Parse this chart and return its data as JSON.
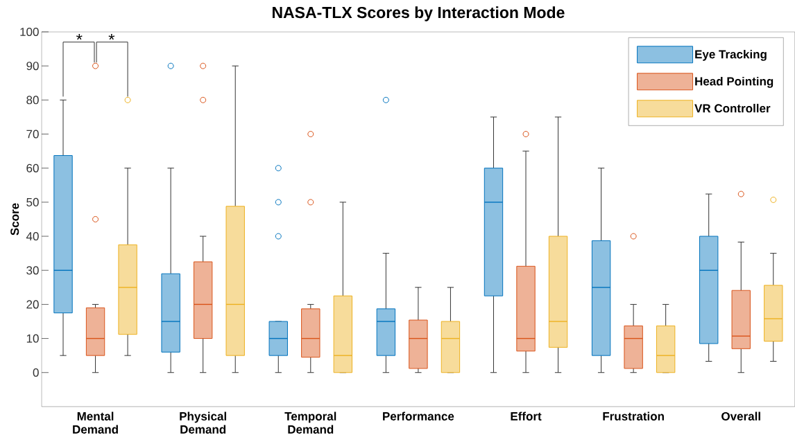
{
  "chart_data": {
    "type": "box",
    "title": "NASA-TLX Scores by Interaction Mode",
    "ylabel": "Score",
    "categories": [
      "Mental Demand",
      "Physical Demand",
      "Temporal Demand",
      "Performance",
      "Effort",
      "Frustration",
      "Overall"
    ],
    "ylim": [
      -10,
      100
    ],
    "yticks": [
      0,
      10,
      20,
      30,
      40,
      50,
      60,
      70,
      80,
      90,
      100
    ],
    "legend": "top right",
    "annotations": [
      "*",
      "*"
    ],
    "series": [
      {
        "name": "Eye Tracking",
        "color": "#0072bd",
        "boxes": [
          {
            "low": 5,
            "q1": 17.5,
            "median": 30,
            "q3": 63.7,
            "high": 80
          },
          {
            "low": 0,
            "q1": 6,
            "median": 15,
            "q3": 29,
            "high": 60,
            "outliers": [
              90
            ]
          },
          {
            "low": 0,
            "q1": 5,
            "median": 10,
            "q3": 15,
            "high": 15,
            "outliers": [
              40,
              50,
              60
            ]
          },
          {
            "low": 0,
            "q1": 5,
            "median": 15,
            "q3": 18.7,
            "high": 35,
            "outliers": [
              80
            ]
          },
          {
            "low": 0,
            "q1": 22.5,
            "median": 50,
            "q3": 60,
            "high": 75
          },
          {
            "low": 0,
            "q1": 5,
            "median": 25,
            "q3": 38.7,
            "high": 60
          },
          {
            "low": 3.3,
            "q1": 8.5,
            "median": 30,
            "q3": 40,
            "high": 52.4
          }
        ]
      },
      {
        "name": "Head Pointing",
        "color": "#d95319",
        "boxes": [
          {
            "low": 0,
            "q1": 5,
            "median": 10,
            "q3": 19,
            "high": 20,
            "outliers": [
              45,
              90
            ]
          },
          {
            "low": 0,
            "q1": 10,
            "median": 20,
            "q3": 32.5,
            "high": 40,
            "outliers": [
              80,
              90
            ]
          },
          {
            "low": 0,
            "q1": 4.5,
            "median": 10,
            "q3": 18.7,
            "high": 20,
            "outliers": [
              50,
              70
            ]
          },
          {
            "low": 0,
            "q1": 1.2,
            "median": 10,
            "q3": 15.4,
            "high": 25
          },
          {
            "low": 0,
            "q1": 6.3,
            "median": 10,
            "q3": 31.2,
            "high": 65,
            "outliers": [
              70
            ]
          },
          {
            "low": 0,
            "q1": 1.2,
            "median": 10,
            "q3": 13.7,
            "high": 20,
            "outliers": [
              40
            ]
          },
          {
            "low": 0,
            "q1": 7,
            "median": 10.7,
            "q3": 24.1,
            "high": 38.3,
            "outliers": [
              52.4
            ]
          }
        ]
      },
      {
        "name": "VR Controller",
        "color": "#edb120",
        "boxes": [
          {
            "low": 5,
            "q1": 11.2,
            "median": 25,
            "q3": 37.5,
            "high": 60,
            "outliers": [
              80
            ]
          },
          {
            "low": 0,
            "q1": 5,
            "median": 20,
            "q3": 48.8,
            "high": 90
          },
          {
            "low": 0,
            "q1": 0,
            "median": 5,
            "q3": 22.5,
            "high": 50
          },
          {
            "low": 0,
            "q1": 0,
            "median": 10,
            "q3": 15,
            "high": 25
          },
          {
            "low": 0,
            "q1": 7.4,
            "median": 15,
            "q3": 40,
            "high": 75
          },
          {
            "low": 0,
            "q1": 0,
            "median": 5,
            "q3": 13.7,
            "high": 20
          },
          {
            "low": 3.3,
            "q1": 9.2,
            "median": 15.8,
            "q3": 25.6,
            "high": 35,
            "outliers": [
              50.7
            ]
          }
        ]
      }
    ]
  }
}
